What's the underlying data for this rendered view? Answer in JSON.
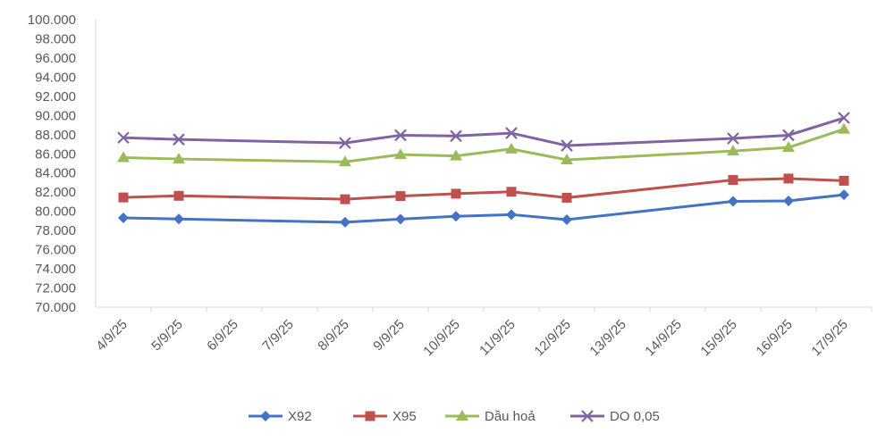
{
  "chart_data": {
    "type": "line",
    "categories": [
      "4/9/25",
      "5/9/25",
      "6/9/25",
      "7/9/25",
      "8/9/25",
      "9/9/25",
      "10/9/25",
      "11/9/25",
      "12/9/25",
      "13/9/25",
      "14/9/25",
      "15/9/25",
      "16/9/25",
      "17/9/25"
    ],
    "ylim": [
      70000,
      100000
    ],
    "ytick_step": 2000,
    "ytick_labels": [
      "70.000",
      "72.000",
      "74.000",
      "76.000",
      "78.000",
      "80.000",
      "82.000",
      "84.000",
      "86.000",
      "88.000",
      "90.000",
      "92.000",
      "94.000",
      "96.000",
      "98.000",
      "100.000"
    ],
    "grid": false,
    "legend_position": "bottom",
    "series": [
      {
        "name": "X92",
        "color": "#4472C4",
        "marker": "diamond",
        "values": [
          79320,
          79200,
          null,
          null,
          78860,
          79190,
          79480,
          79660,
          79130,
          null,
          null,
          81040,
          81090,
          81730
        ]
      },
      {
        "name": "X95",
        "color": "#C0504D",
        "marker": "square",
        "values": [
          81450,
          81620,
          null,
          null,
          81260,
          81590,
          81840,
          82040,
          81420,
          null,
          null,
          83270,
          83420,
          83190
        ]
      },
      {
        "name": "Dầu hoả",
        "color": "#9BBB59",
        "marker": "triangle",
        "values": [
          85600,
          85460,
          null,
          null,
          85160,
          85920,
          85780,
          86500,
          85370,
          null,
          null,
          86290,
          86660,
          88570
        ]
      },
      {
        "name": "DO 0,05",
        "color": "#8064A2",
        "marker": "x",
        "values": [
          87680,
          87500,
          null,
          null,
          87130,
          87940,
          87860,
          88160,
          86860,
          null,
          null,
          87610,
          87940,
          89750
        ]
      }
    ]
  }
}
